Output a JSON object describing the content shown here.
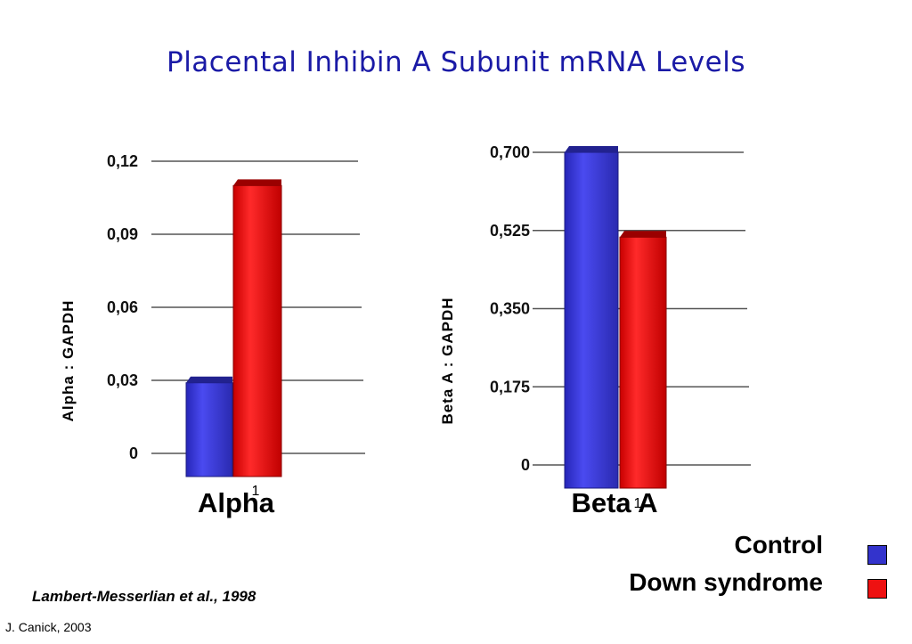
{
  "title": "Placental Inhibin A Subunit mRNA Levels",
  "chart_data": [
    {
      "type": "bar",
      "categories": [
        "1"
      ],
      "group_label": "Alpha",
      "ylabel": "Alpha : GAPDH",
      "ylim": [
        0,
        0.12
      ],
      "yticks": [
        "0",
        "0,03",
        "0,06",
        "0,09",
        "0,12"
      ],
      "ytick_values": [
        0,
        0.03,
        0.06,
        0.09,
        0.12
      ],
      "grid": true,
      "series": [
        {
          "name": "Control",
          "values": [
            0.029
          ]
        },
        {
          "name": "Down syndrome",
          "values": [
            0.11
          ]
        }
      ]
    },
    {
      "type": "bar",
      "categories": [
        "1"
      ],
      "group_label": "Beta A",
      "ylabel": "Beta A : GAPDH",
      "ylim": [
        0,
        0.7
      ],
      "yticks": [
        "0",
        "0,175",
        "0,350",
        "0,525",
        "0,700"
      ],
      "ytick_values": [
        0,
        0.175,
        0.35,
        0.525,
        0.7
      ],
      "grid": true,
      "series": [
        {
          "name": "Control",
          "values": [
            0.7
          ]
        },
        {
          "name": "Down syndrome",
          "values": [
            0.51
          ]
        }
      ]
    }
  ],
  "legend": {
    "items": [
      {
        "label": "Control",
        "color": "#3333cc"
      },
      {
        "label": "Down syndrome",
        "color": "#ee1111"
      }
    ]
  },
  "citation": "Lambert-Messerlian et al., 1998",
  "footer": "J. Canick, 2003"
}
